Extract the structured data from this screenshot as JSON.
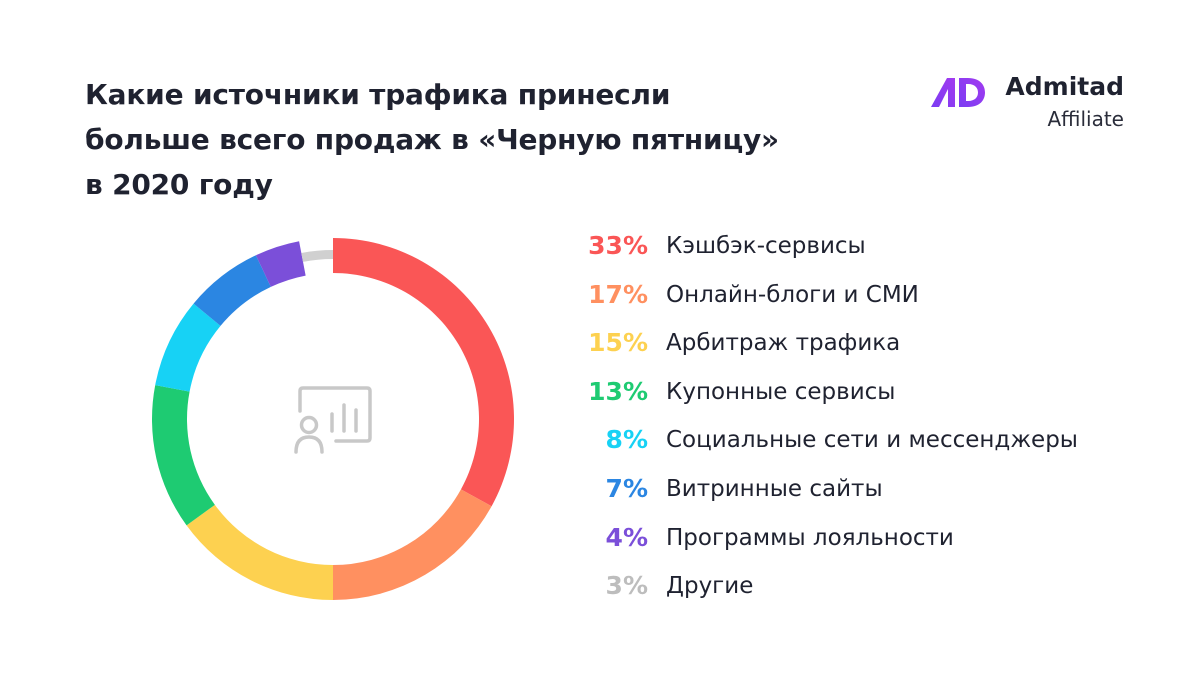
{
  "title_lines": [
    "Какие источники трафика принесли",
    "больше всего продаж в «Черную пятницу»",
    "в 2020 году"
  ],
  "brand": {
    "name": "Admitad",
    "subtitle": "Affiliate",
    "logo_colors": [
      "#7b3cf2",
      "#a23bf0"
    ]
  },
  "center_icon": "presentation-chart-icon",
  "chart_data": {
    "type": "pie",
    "variant": "donut",
    "title": "Какие источники трафика принесли больше всего продаж в «Черную пятницу» в 2020 году",
    "unit": "%",
    "legend_placement": "right",
    "slices": [
      {
        "pct": "33%",
        "value": 33,
        "label": "Кэшбэк-сервисы",
        "color": "#fa5656"
      },
      {
        "pct": "17%",
        "value": 17,
        "label": "Онлайн-блоги и СМИ",
        "color": "#ff9060"
      },
      {
        "pct": "15%",
        "value": 15,
        "label": "Арбитраж трафика",
        "color": "#fdd150"
      },
      {
        "pct": "13%",
        "value": 13,
        "label": "Купонные сервисы",
        "color": "#1ecb72"
      },
      {
        "pct": "8%",
        "value": 8,
        "label": "Социальные сети и мессенджеры",
        "color": "#17d2f5"
      },
      {
        "pct": "7%",
        "value": 7,
        "label": "Витринные сайты",
        "color": "#2b86e2"
      },
      {
        "pct": "4%",
        "value": 4,
        "label": "Программы лояльности",
        "color": "#7b4fd9"
      },
      {
        "pct": "3%",
        "value": 3,
        "label": "Другие",
        "color": "#d0d0d0"
      }
    ]
  }
}
